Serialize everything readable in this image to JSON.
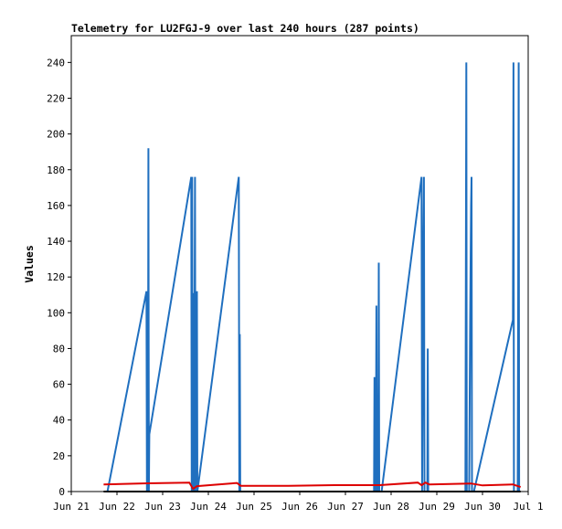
{
  "chart_data": {
    "type": "line",
    "title": "Telemetry for LU2FGJ-9 over last 240 hours (287 points)",
    "xlabel": "",
    "ylabel": "Values",
    "xlim": [
      "2024-06-21",
      "2024-07-01"
    ],
    "ylim": [
      0,
      255
    ],
    "x_ticks": [
      "Jun 21",
      "Jun 22",
      "Jun 23",
      "Jun 24",
      "Jun 25",
      "Jun 26",
      "Jun 27",
      "Jun 28",
      "Jun 29",
      "Jun 30",
      "Jul 1"
    ],
    "y_ticks": [
      0,
      20,
      40,
      60,
      80,
      100,
      120,
      140,
      160,
      180,
      200,
      220,
      240
    ],
    "grid": false,
    "legend": "none",
    "series": [
      {
        "color": "#1f6fbf",
        "points": [
          [
            "2024-06-21T19:00",
            0
          ],
          [
            "2024-06-22T15:30",
            112
          ],
          [
            "2024-06-22T15:45",
            0
          ],
          [
            "2024-06-22T16:00",
            97
          ],
          [
            "2024-06-22T16:15",
            0
          ],
          [
            "2024-06-22T16:30",
            192
          ],
          [
            "2024-06-22T16:45",
            0
          ],
          [
            "2024-06-22T17:00",
            32
          ],
          [
            "2024-06-23T15:00",
            176
          ],
          [
            "2024-06-23T15:15",
            0
          ],
          [
            "2024-06-23T15:30",
            176
          ],
          [
            "2024-06-23T15:45",
            0
          ],
          [
            "2024-06-23T16:15",
            111
          ],
          [
            "2024-06-23T16:30",
            0
          ],
          [
            "2024-06-23T17:00",
            176
          ],
          [
            "2024-06-23T17:15",
            0
          ],
          [
            "2024-06-23T18:00",
            112
          ],
          [
            "2024-06-23T18:15",
            0
          ],
          [
            "2024-06-24T16:00",
            176
          ],
          [
            "2024-06-24T16:15",
            0
          ],
          [
            "2024-06-24T16:30",
            88
          ],
          [
            "2024-06-24T16:45",
            0
          ],
          [
            "2024-06-27T15:00",
            0
          ],
          [
            "2024-06-27T15:15",
            64
          ],
          [
            "2024-06-27T15:30",
            0
          ],
          [
            "2024-06-27T16:00",
            0
          ],
          [
            "2024-06-27T16:15",
            104
          ],
          [
            "2024-06-27T16:30",
            0
          ],
          [
            "2024-06-27T17:15",
            0
          ],
          [
            "2024-06-27T17:30",
            128
          ],
          [
            "2024-06-27T17:45",
            0
          ],
          [
            "2024-06-27T19:00",
            0
          ],
          [
            "2024-06-28T16:00",
            176
          ],
          [
            "2024-06-28T16:15",
            0
          ],
          [
            "2024-06-28T17:00",
            145
          ],
          [
            "2024-06-28T17:15",
            176
          ],
          [
            "2024-06-28T17:30",
            0
          ],
          [
            "2024-06-28T19:00",
            0
          ],
          [
            "2024-06-28T19:15",
            80
          ],
          [
            "2024-06-28T19:30",
            0
          ],
          [
            "2024-06-29T15:00",
            0
          ],
          [
            "2024-06-29T15:15",
            120
          ],
          [
            "2024-06-29T15:30",
            240
          ],
          [
            "2024-06-29T15:45",
            0
          ],
          [
            "2024-06-29T17:00",
            0
          ],
          [
            "2024-06-29T17:30",
            96
          ],
          [
            "2024-06-29T18:00",
            160
          ],
          [
            "2024-06-29T18:15",
            176
          ],
          [
            "2024-06-29T18:30",
            0
          ],
          [
            "2024-06-29T19:30",
            0
          ],
          [
            "2024-06-30T16:00",
            96
          ],
          [
            "2024-06-30T16:15",
            240
          ],
          [
            "2024-06-30T16:30",
            0
          ],
          [
            "2024-06-30T18:30",
            0
          ],
          [
            "2024-06-30T18:45",
            120
          ],
          [
            "2024-06-30T19:00",
            240
          ],
          [
            "2024-06-30T19:15",
            0
          ]
        ]
      },
      {
        "color": "#dd0000",
        "points": [
          [
            "2024-06-21T17:00",
            4
          ],
          [
            "2024-06-22T16:00",
            4.6
          ],
          [
            "2024-06-23T14:00",
            5
          ],
          [
            "2024-06-23T16:00",
            1.5
          ],
          [
            "2024-06-23T18:00",
            3
          ],
          [
            "2024-06-24T15:00",
            4.8
          ],
          [
            "2024-06-24T17:00",
            3.2
          ],
          [
            "2024-06-25T18:00",
            3.2
          ],
          [
            "2024-06-26T18:00",
            3.6
          ],
          [
            "2024-06-27T18:00",
            3.6
          ],
          [
            "2024-06-28T14:00",
            5
          ],
          [
            "2024-06-28T16:00",
            3.6
          ],
          [
            "2024-06-28T18:00",
            5
          ],
          [
            "2024-06-28T20:00",
            4
          ],
          [
            "2024-06-29T18:00",
            4.5
          ],
          [
            "2024-06-30T00:00",
            3.4
          ],
          [
            "2024-06-30T16:00",
            4
          ],
          [
            "2024-06-30T20:00",
            2.5
          ]
        ]
      },
      {
        "color": "#000000",
        "points": [
          [
            "2024-06-21T17:00",
            0
          ],
          [
            "2024-06-30T20:00",
            0
          ]
        ]
      }
    ]
  }
}
